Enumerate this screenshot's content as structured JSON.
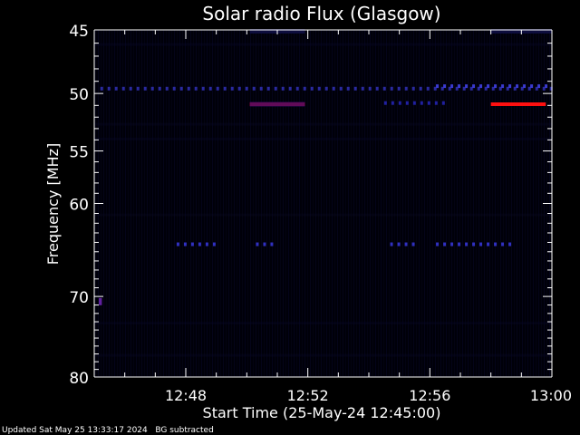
{
  "chart_data": {
    "type": "heatmap",
    "title": "Solar radio Flux (Glasgow)",
    "xlabel": "Start Time (25-May-24 12:45:00)",
    "ylabel": "Frequency [MHz]",
    "xlim_minutes": [
      0,
      15
    ],
    "ylim_mhz": [
      45,
      80
    ],
    "y_scale": "log",
    "x_ticks": [
      {
        "minutes": 3,
        "label": "12:48"
      },
      {
        "minutes": 7,
        "label": "12:52"
      },
      {
        "minutes": 11,
        "label": "12:56"
      },
      {
        "minutes": 15,
        "label": "13:00"
      }
    ],
    "y_ticks": [
      {
        "mhz": 45,
        "label": "45"
      },
      {
        "mhz": 50,
        "label": "50"
      },
      {
        "mhz": 55,
        "label": "55"
      },
      {
        "mhz": 60,
        "label": "60"
      },
      {
        "mhz": 70,
        "label": "70"
      },
      {
        "mhz": 80,
        "label": "80"
      }
    ],
    "background_color": "#000010",
    "features": [
      {
        "kind": "strong-band",
        "freq_mhz": 50.9,
        "start_min": 5.1,
        "end_min": 6.9,
        "color": "#ff1010"
      },
      {
        "kind": "strong-band",
        "freq_mhz": 50.9,
        "start_min": 13.0,
        "end_min": 14.8,
        "color": "#ff1010"
      },
      {
        "kind": "weak-band",
        "freq_mhz": 50.9,
        "start_min": 5.1,
        "end_min": 6.9,
        "color": "#3a0a6a"
      },
      {
        "kind": "dashed-band",
        "freq_mhz": 49.6,
        "start_min": 0.2,
        "end_min": 15.0,
        "color": "#2a2aa0"
      },
      {
        "kind": "dashed-band",
        "freq_mhz": 49.4,
        "start_min": 11.2,
        "end_min": 15.0,
        "color": "#3a3ad0"
      },
      {
        "kind": "dashed-band",
        "freq_mhz": 64.2,
        "start_min": 2.7,
        "end_min": 3.9,
        "color": "#3030c0"
      },
      {
        "kind": "dashed-band",
        "freq_mhz": 64.2,
        "start_min": 5.3,
        "end_min": 6.0,
        "color": "#3030c0"
      },
      {
        "kind": "dashed-band",
        "freq_mhz": 64.2,
        "start_min": 9.7,
        "end_min": 10.6,
        "color": "#3030c0"
      },
      {
        "kind": "dashed-band",
        "freq_mhz": 64.2,
        "start_min": 11.2,
        "end_min": 13.8,
        "color": "#3030c0"
      },
      {
        "kind": "dashed-band",
        "freq_mhz": 50.8,
        "start_min": 9.5,
        "end_min": 11.5,
        "color": "#2020a0"
      },
      {
        "kind": "weak-band",
        "freq_mhz": 45.1,
        "start_min": 5.1,
        "end_min": 6.9,
        "color": "#10104a"
      },
      {
        "kind": "weak-band",
        "freq_mhz": 45.1,
        "start_min": 13.0,
        "end_min": 15.0,
        "color": "#10104a"
      },
      {
        "kind": "spot",
        "freq_mhz": 70.6,
        "start_min": 0.15,
        "end_min": 0.25,
        "color": "#6020a0"
      }
    ]
  },
  "footer": {
    "updated": "Updated Sat May 25 13:33:17 2024",
    "note": "BG subtracted"
  },
  "colors": {
    "axis": "#ffffff",
    "text": "#ffffff"
  }
}
